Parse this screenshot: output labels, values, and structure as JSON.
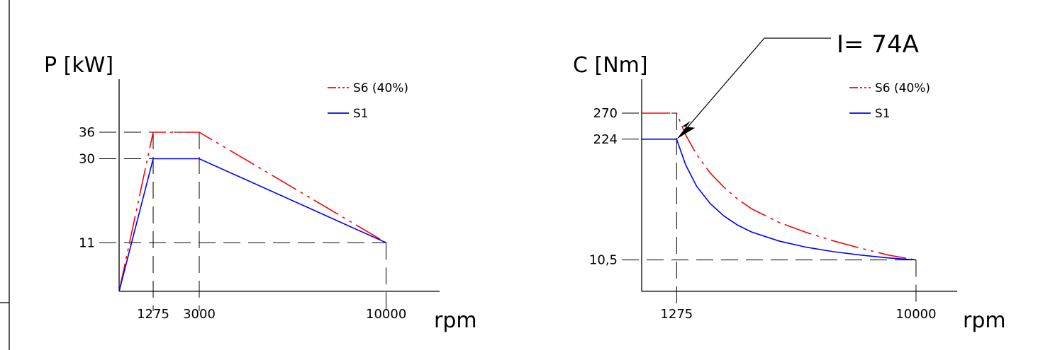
{
  "chart_data": [
    {
      "type": "line",
      "ylabel": "P [kW]",
      "xlabel": "rpm",
      "x_ticks": [
        1275,
        3000,
        10000
      ],
      "y_ticks": [
        {
          "value": 11,
          "label": "11"
        },
        {
          "value": 30,
          "label": "30"
        },
        {
          "value": 36,
          "label": "36"
        }
      ],
      "xlim": [
        0,
        12000
      ],
      "ylim": [
        0,
        48
      ],
      "legend_position": "top-right",
      "grid": false,
      "series": [
        {
          "name": "S6 (40%)",
          "color": "#ff0000",
          "style": "dash-dot-dot",
          "points": [
            [
              0,
              0
            ],
            [
              1275,
              36
            ],
            [
              3000,
              36
            ],
            [
              10000,
              11
            ]
          ]
        },
        {
          "name": "S1",
          "color": "#0000ff",
          "style": "solid",
          "points": [
            [
              0,
              0
            ],
            [
              1275,
              30
            ],
            [
              3000,
              30
            ],
            [
              10000,
              11
            ]
          ]
        }
      ]
    },
    {
      "type": "line",
      "ylabel": "C [Nm]",
      "xlabel": "rpm",
      "x_ticks": [
        1275,
        10000
      ],
      "y_ticks": [
        {
          "value": 10.5,
          "label": "10,5"
        },
        {
          "value": 224,
          "label": "224"
        },
        {
          "value": 270,
          "label": "270"
        }
      ],
      "xlim": [
        0,
        11500
      ],
      "ylim": [
        -45,
        330
      ],
      "legend_position": "top-right",
      "grid": false,
      "annotation": {
        "text": "I= 74A",
        "x": 1275,
        "y": 224
      },
      "series": [
        {
          "name": "S6 (40%)",
          "color": "#ff0000",
          "style": "dash-dot-dot",
          "points": [
            [
              0,
              270
            ],
            [
              1275,
              270
            ],
            [
              1600,
              232
            ],
            [
              2000,
              197
            ],
            [
              2500,
              164
            ],
            [
              3000,
              139
            ],
            [
              3500,
              118
            ],
            [
              4000,
              101
            ],
            [
              5000,
              77
            ],
            [
              6000,
              59
            ],
            [
              7000,
              44
            ],
            [
              8000,
              31
            ],
            [
              9000,
              19
            ],
            [
              10000,
              10.5
            ]
          ]
        },
        {
          "name": "S1",
          "color": "#0000ff",
          "style": "solid",
          "points": [
            [
              0,
              224
            ],
            [
              1275,
              224
            ],
            [
              1600,
              179
            ],
            [
              2000,
              141
            ],
            [
              2500,
              110
            ],
            [
              3000,
              88
            ],
            [
              3500,
              72
            ],
            [
              4000,
              60
            ],
            [
              5000,
              44
            ],
            [
              6000,
              33
            ],
            [
              7000,
              25
            ],
            [
              8000,
              19
            ],
            [
              9000,
              14
            ],
            [
              10000,
              10.5
            ]
          ]
        }
      ]
    }
  ]
}
